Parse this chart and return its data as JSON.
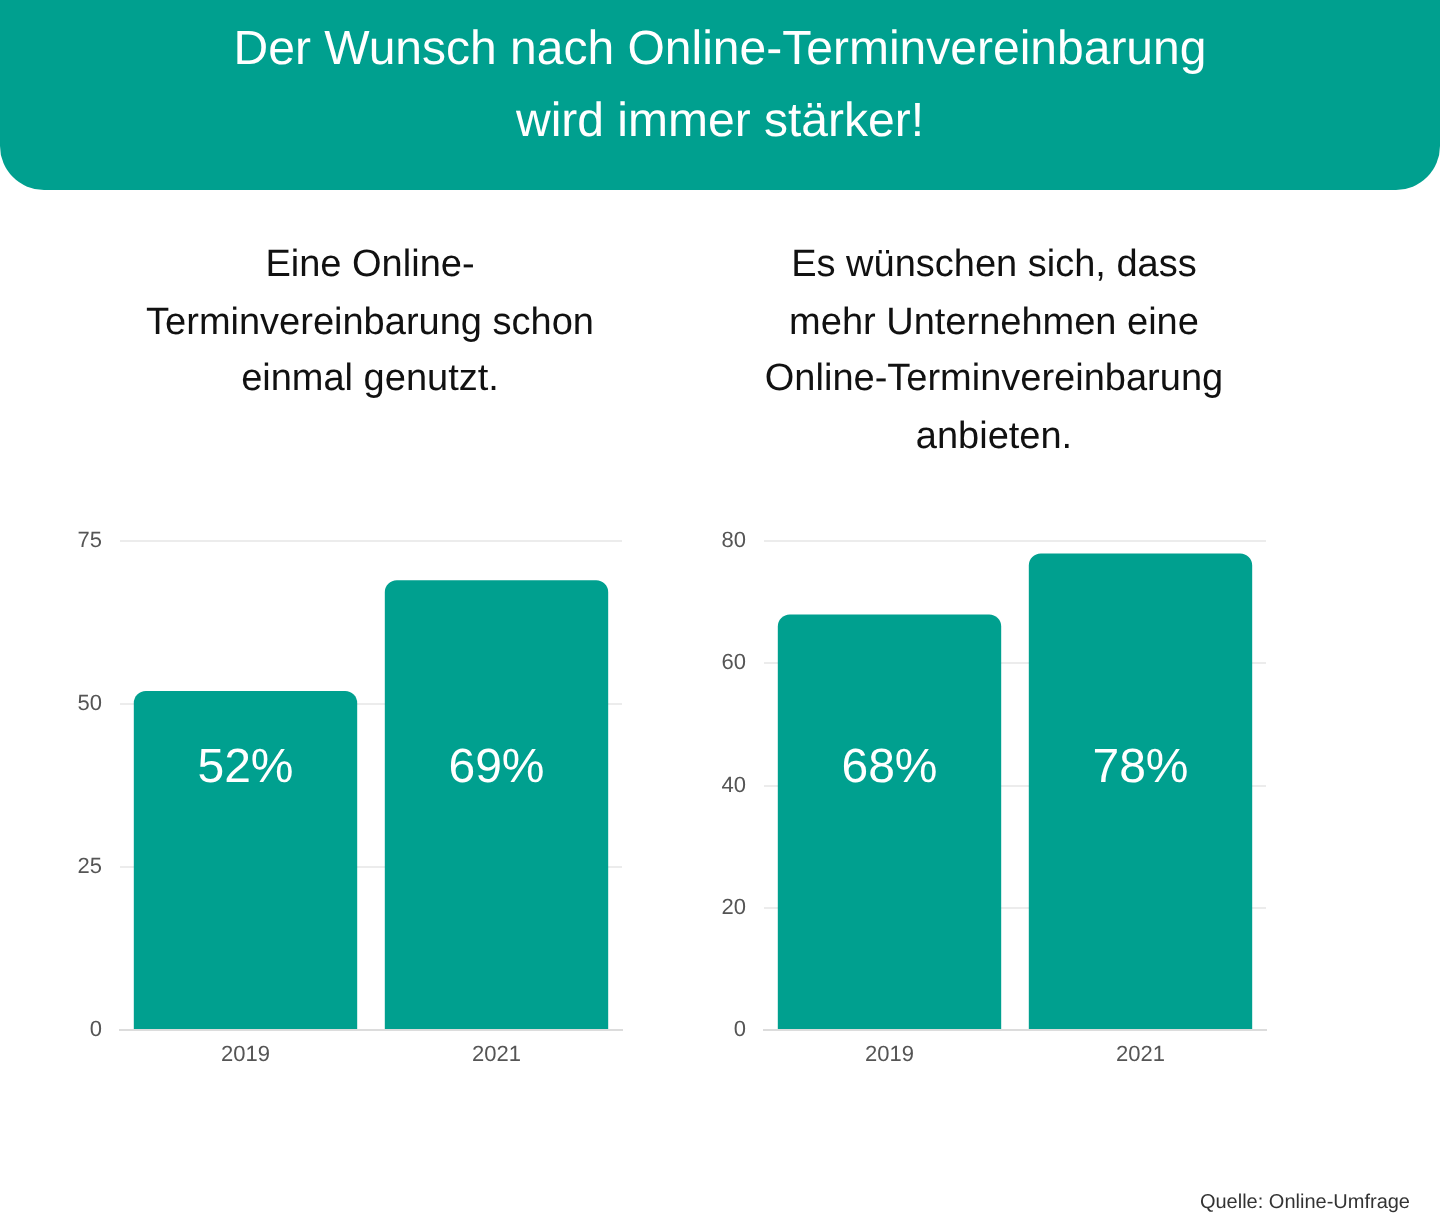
{
  "chart_data": [
    {
      "type": "bar",
      "title": "Der Wunsch nach Online-Terminvereinbarung wird immer stärker!",
      "subtitle": "Eine Online-Terminvereinbarung schon einmal genutzt.",
      "categories": [
        "2019",
        "2021"
      ],
      "values": [
        52,
        69
      ],
      "value_labels": [
        "52%",
        "69%"
      ],
      "color": "#00a08f",
      "ylim": [
        0,
        75
      ],
      "yticks": [
        0,
        25,
        50,
        75
      ],
      "grid": "y"
    },
    {
      "type": "bar",
      "subtitle": "Es wünschen sich, dass mehr Unternehmen eine Online-Terminvereinbarung anbieten.",
      "categories": [
        "2019",
        "2021"
      ],
      "values": [
        68,
        78
      ],
      "value_labels": [
        "68%",
        "78%"
      ],
      "color": "#00a08f",
      "ylim": [
        0,
        80
      ],
      "yticks": [
        0,
        20,
        40,
        60,
        80
      ],
      "grid": "y",
      "annotations": [
        "Quelle: Online-Umfrage"
      ]
    }
  ]
}
